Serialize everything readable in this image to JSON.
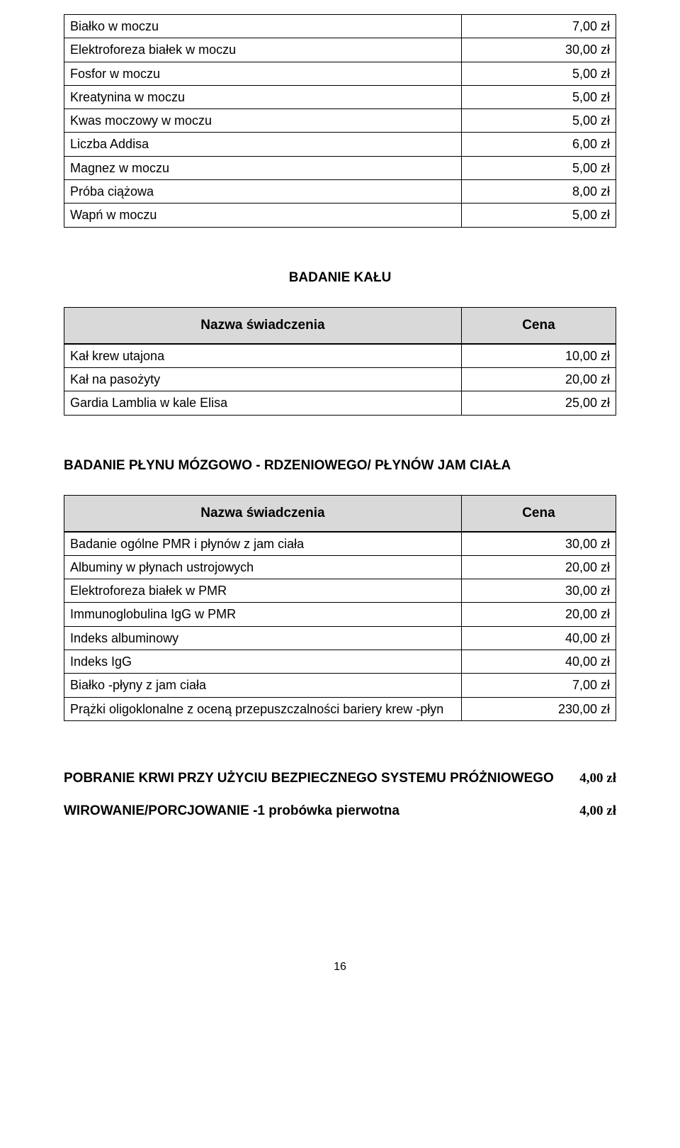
{
  "colors": {
    "header_bg": "#d9d9d9",
    "border": "#000000",
    "text": "#000000",
    "background": "#ffffff"
  },
  "typography": {
    "body_font": "Arial",
    "body_size_pt": 14,
    "heading_size_pt": 14,
    "heading_weight": "bold",
    "price_footer_font": "Times New Roman"
  },
  "tables": {
    "top": {
      "rows": [
        {
          "name": "Białko w moczu",
          "price": "7,00 zł"
        },
        {
          "name": "Elektroforeza białek w moczu",
          "price": "30,00 zł"
        },
        {
          "name": "Fosfor w moczu",
          "price": "5,00 zł"
        },
        {
          "name": "Kreatynina w moczu",
          "price": "5,00 zł"
        },
        {
          "name": "Kwas moczowy w moczu",
          "price": "5,00 zł"
        },
        {
          "name": "Liczba Addisa",
          "price": "6,00 zł"
        },
        {
          "name": "Magnez w moczu",
          "price": "5,00 zł"
        },
        {
          "name": "Próba ciążowa",
          "price": "8,00 zł"
        },
        {
          "name": "Wapń w moczu",
          "price": "5,00 zł"
        }
      ]
    },
    "kalu": {
      "title": "BADANIE KAŁU",
      "header": {
        "name": "Nazwa świadczenia",
        "price": "Cena"
      },
      "rows": [
        {
          "name": "Kał krew utajona",
          "price": "10,00 zł"
        },
        {
          "name": "Kał na pasożyty",
          "price": "20,00 zł"
        },
        {
          "name": "Gardia Lamblia w kale Elisa",
          "price": "25,00 zł"
        }
      ]
    },
    "plyny": {
      "title": "BADANIE PŁYNU MÓZGOWO - RDZENIOWEGO/ PŁYNÓW JAM CIAŁA",
      "header": {
        "name": "Nazwa świadczenia",
        "price": "Cena"
      },
      "rows": [
        {
          "name": "Badanie ogólne PMR i płynów z jam ciała",
          "price": "30,00 zł"
        },
        {
          "name": "Albuminy w płynach ustrojowych",
          "price": "20,00 zł"
        },
        {
          "name": "Elektroforeza białek w PMR",
          "price": "30,00 zł"
        },
        {
          "name": "Immunoglobulina IgG w PMR",
          "price": "20,00 zł"
        },
        {
          "name": "Indeks albuminowy",
          "price": "40,00 zł"
        },
        {
          "name": "Indeks IgG",
          "price": "40,00 zł"
        },
        {
          "name": "Białko -płyny z jam ciała",
          "price": "7,00 zł"
        },
        {
          "name": "Prążki oligoklonalne z oceną przepuszczalności bariery krew -płyn",
          "price": "230,00 zł"
        }
      ]
    }
  },
  "footer_lines": [
    {
      "name": "POBRANIE KRWI PRZY UŻYCIU BEZPIECZNEGO SYSTEMU PRÓŻNIOWEGO",
      "price": "4,00 zł"
    },
    {
      "name": "WIROWANIE/PORCJOWANIE  -1 probówka pierwotna",
      "price": "4,00 zł"
    }
  ],
  "page_number": "16"
}
